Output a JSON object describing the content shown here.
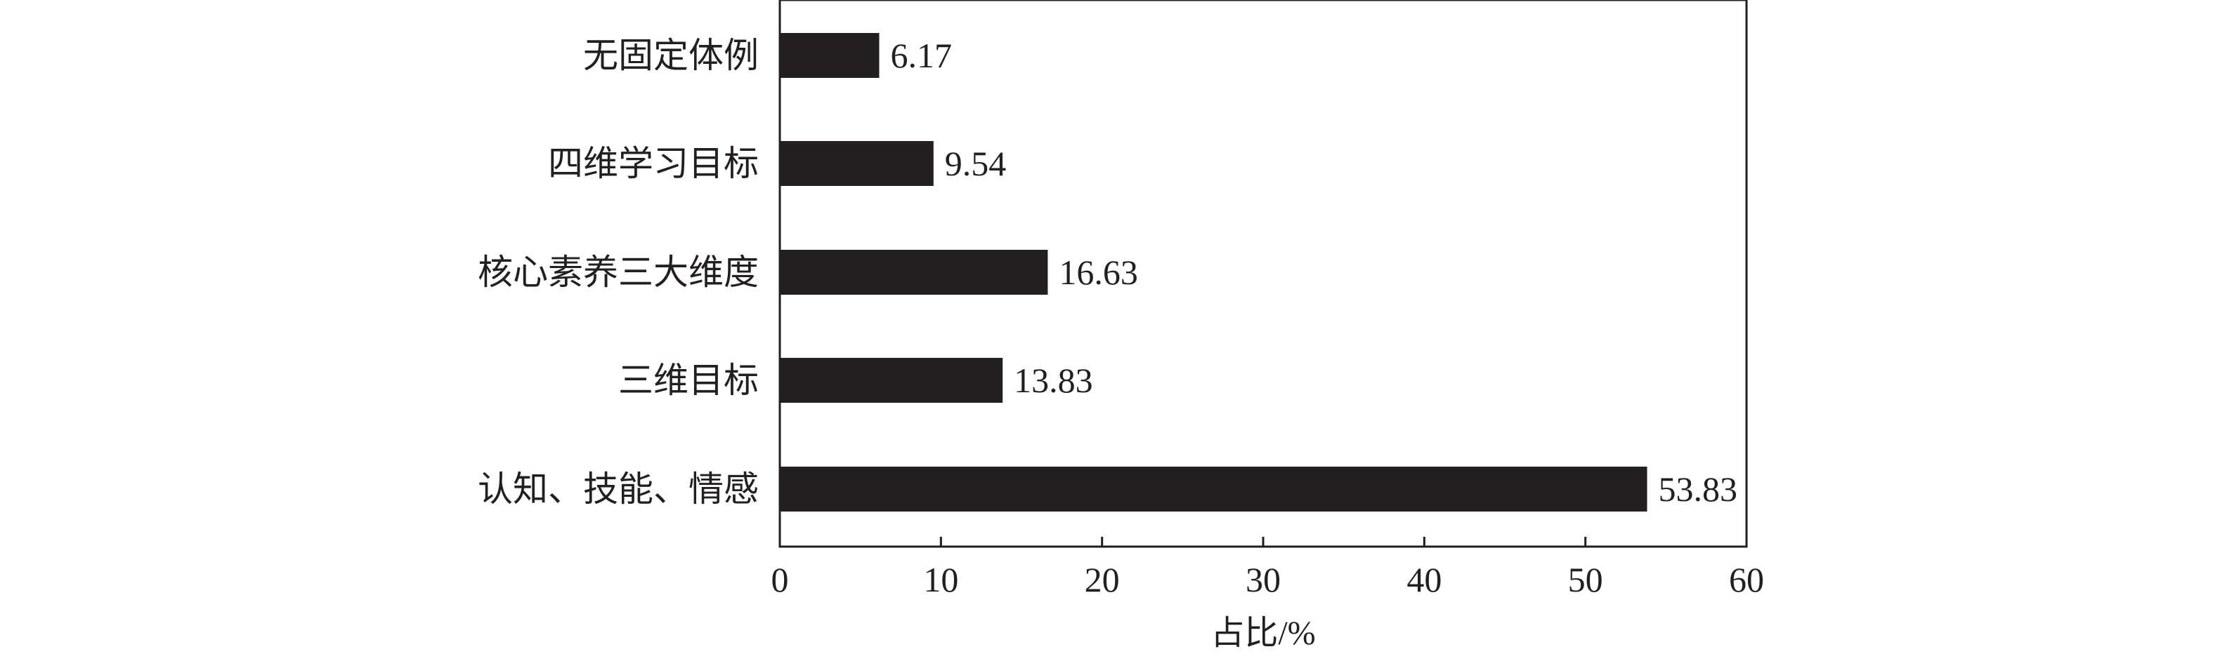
{
  "chart_data": {
    "type": "bar",
    "orientation": "horizontal",
    "categories": [
      "无固定体例",
      "四维学习目标",
      "核心素养三大维度",
      "三维目标",
      "认知、技能、情感"
    ],
    "values": [
      6.17,
      9.54,
      16.63,
      13.83,
      53.83
    ],
    "value_labels": [
      "6.17",
      "9.54",
      "16.63",
      "13.83",
      "53.83"
    ],
    "title": "",
    "xlabel": "占比/%",
    "ylabel": "",
    "xlim": [
      0,
      60
    ],
    "x_ticks": [
      0,
      10,
      20,
      30,
      40,
      50,
      60
    ],
    "x_tick_labels": [
      "0",
      "10",
      "20",
      "30",
      "40",
      "50",
      "60"
    ],
    "grid": false,
    "legend": "none",
    "colors": {
      "bar": "#231f20",
      "axis": "#231f20",
      "text": "#231f20",
      "background": "#ffffff"
    }
  }
}
